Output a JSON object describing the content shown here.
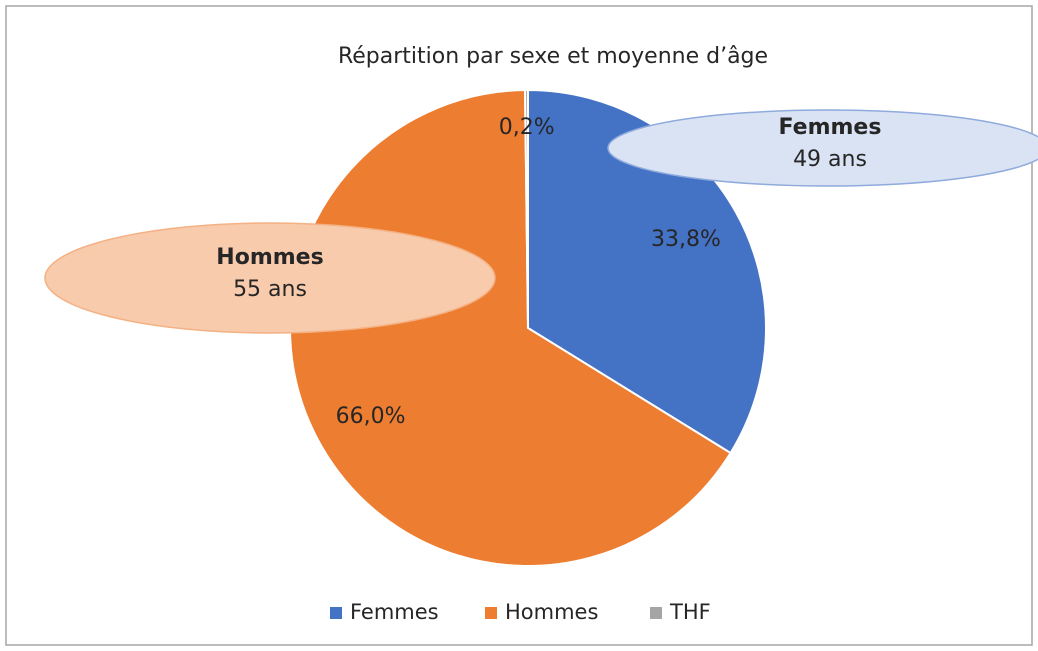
{
  "chart_data": {
    "type": "pie",
    "title": "Répartition par sexe et moyenne d’âge",
    "categories": [
      "Femmes",
      "Hommes",
      "THF"
    ],
    "values": [
      33.8,
      66.0,
      0.2
    ],
    "value_labels": [
      "33,8%",
      "66,0%",
      "0,2%"
    ],
    "colors": [
      "#4472c4",
      "#ed7d31",
      "#a5a5a5"
    ],
    "legend": "bottom",
    "annotations": [
      {
        "title": "Femmes",
        "text": "49 ans"
      },
      {
        "title": "Hommes",
        "text": "55 ans"
      }
    ]
  }
}
